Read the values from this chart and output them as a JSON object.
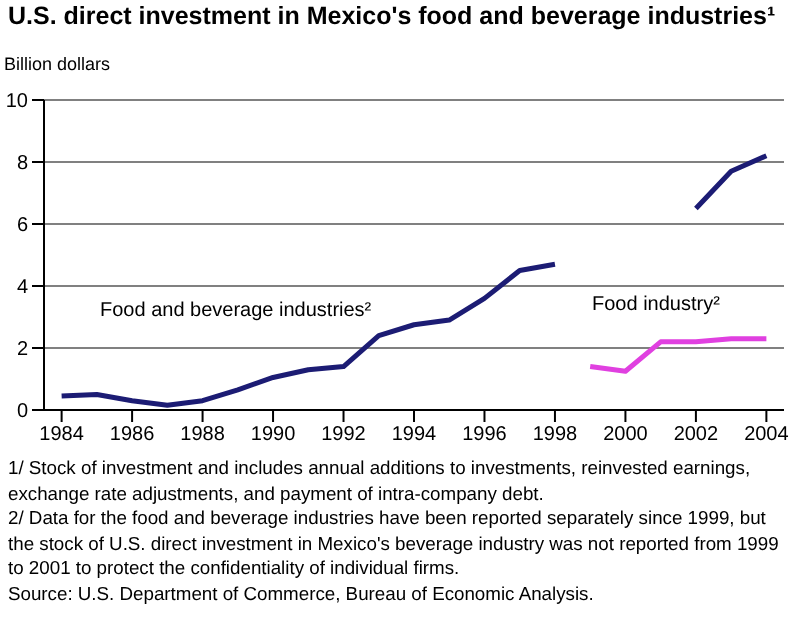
{
  "chart_data": {
    "type": "line",
    "title": "U.S. direct investment in Mexico's food and beverage industries¹",
    "ylabel": "Billion dollars",
    "x": [
      1984,
      1985,
      1986,
      1987,
      1988,
      1989,
      1990,
      1991,
      1992,
      1993,
      1994,
      1995,
      1996,
      1997,
      1998,
      1999,
      2000,
      2001,
      2002,
      2003,
      2004
    ],
    "series": [
      {
        "name": "Food and beverage industries²",
        "color": "#1c1c74",
        "values": [
          0.45,
          0.5,
          0.3,
          0.15,
          0.3,
          0.65,
          1.05,
          1.3,
          1.4,
          2.4,
          2.75,
          2.9,
          3.6,
          4.5,
          4.7,
          null,
          null,
          null,
          6.5,
          7.7,
          8.2
        ]
      },
      {
        "name": "Food industry²",
        "color": "#e040e0",
        "values": [
          null,
          null,
          null,
          null,
          null,
          null,
          null,
          null,
          null,
          null,
          null,
          null,
          null,
          null,
          null,
          1.4,
          1.25,
          2.2,
          2.2,
          2.3,
          2.3
        ]
      }
    ],
    "xlim": [
      1983.5,
      2004.5
    ],
    "xticks": [
      1984,
      1986,
      1988,
      1990,
      1992,
      1994,
      1996,
      1998,
      2000,
      2002,
      2004
    ],
    "ylim": [
      0,
      10
    ],
    "yticks": [
      0,
      2,
      4,
      6,
      8,
      10
    ],
    "grid": "y",
    "legend": false,
    "annotations": [
      "1/ Stock of investment and includes annual additions to investments, reinvested earnings, exchange rate adjustments, and payment of intra-company debt.",
      "2/ Data for the food and beverage industries have been reported separately since 1999, but the stock of U.S. direct investment in Mexico's beverage industry was not reported from 1999 to 2001 to protect the confidentiality of individual firms.",
      "Source: U.S. Department of Commerce, Bureau of Economic Analysis."
    ]
  }
}
